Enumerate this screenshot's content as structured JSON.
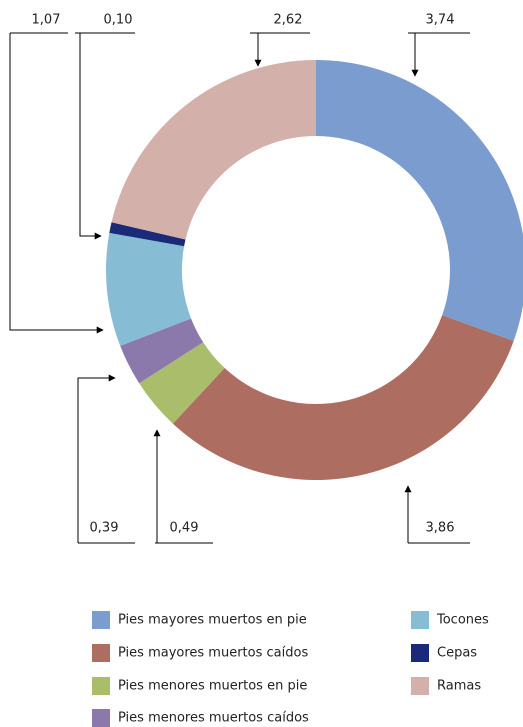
{
  "chart_data": {
    "type": "donut",
    "categories": [
      "Pies mayores muertos en pie",
      "Pies mayores muertos caídos",
      "Pies menores muertos en pie",
      "Pies menores muertos caídos",
      "Tocones",
      "Cepas",
      "Ramas"
    ],
    "values": [
      3.74,
      3.86,
      0.49,
      0.39,
      1.07,
      0.1,
      2.62
    ],
    "value_labels": [
      "3,74",
      "3,86",
      "0,49",
      "0,39",
      "1,07",
      "0,10",
      "2,62"
    ],
    "colors": [
      "#7b9ccf",
      "#ad6e61",
      "#a9bd6b",
      "#8c79ab",
      "#86bcd4",
      "#1a2a78",
      "#d3b0aa"
    ]
  }
}
